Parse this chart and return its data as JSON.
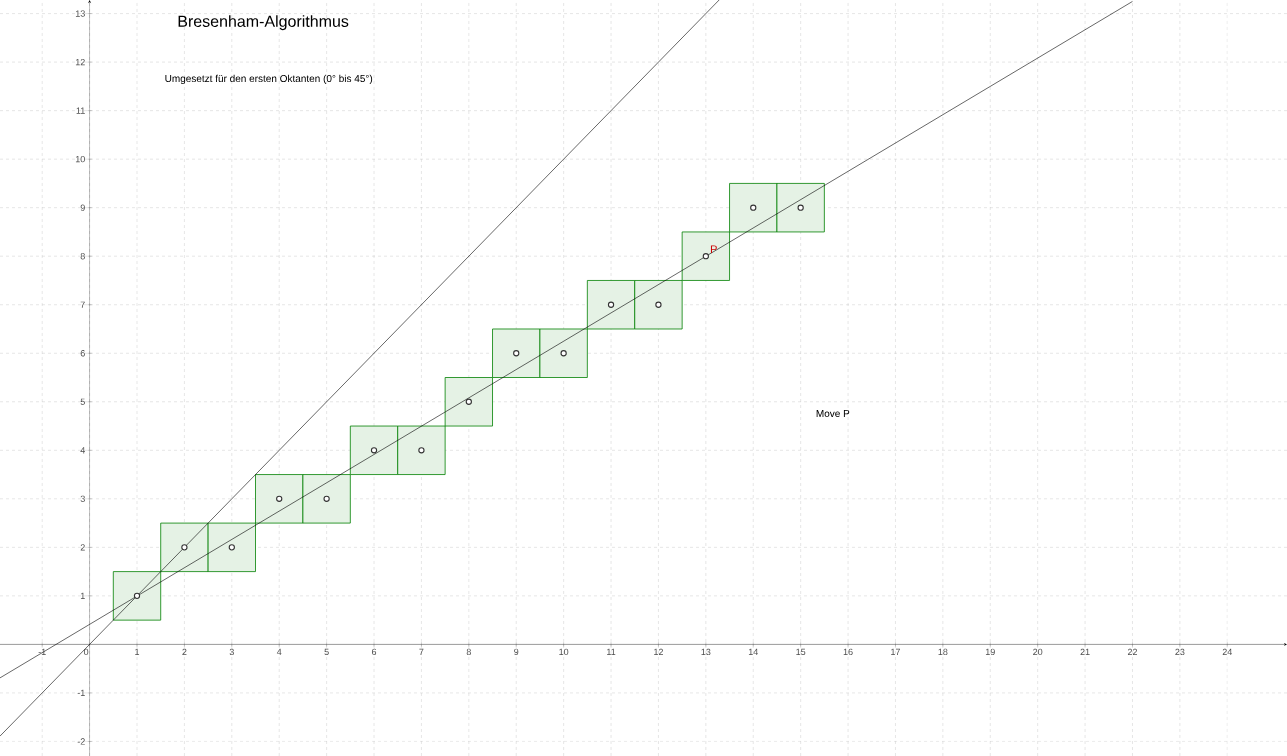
{
  "chart_data": {
    "type": "scatter",
    "title": "Bresenham-Algorithmus",
    "annotations": [
      "Umgesetzt für den ersten Oktanten (0° bis 45°)",
      "Move P",
      {
        "text": "P",
        "x": 13,
        "y": 8
      }
    ],
    "xlim": [
      -1.89,
      25.26
    ],
    "ylim": [
      -2.3,
      13.28
    ],
    "xticks": [
      -1,
      0,
      1,
      2,
      3,
      4,
      5,
      6,
      7,
      8,
      9,
      10,
      11,
      12,
      13,
      14,
      15,
      16,
      17,
      18,
      19,
      20,
      21,
      22,
      23,
      24
    ],
    "yticks": [
      -2,
      -1,
      {
        "value": 0,
        "label": null
      },
      1,
      2,
      3,
      4,
      5,
      6,
      7,
      8,
      9,
      10,
      11,
      12,
      13
    ],
    "grid": true,
    "series": [
      {
        "type": "bar",
        "color": "#008000",
        "x": [
          1,
          2,
          3,
          4,
          5,
          6,
          7,
          8,
          9,
          10,
          11,
          12,
          13,
          14,
          15
        ],
        "base": [
          0.5,
          1.5,
          1.5,
          2.5,
          2.5,
          3.5,
          3.5,
          4.5,
          5.5,
          5.5,
          6.5,
          6.5,
          7.5,
          8.5,
          8.5
        ],
        "values": [
          1,
          1,
          1,
          1,
          1,
          1,
          1,
          1,
          1,
          1,
          1,
          1,
          1,
          1,
          1
        ]
      },
      {
        "type": "line",
        "marker": "none",
        "color": "#000000",
        "x": [
          -1.89,
          22
        ],
        "values": [
          -0.69,
          13.25
        ]
      },
      {
        "type": "line",
        "marker": "none",
        "color": "#000000",
        "x": [
          -1.89,
          13.28
        ],
        "values": [
          -1.89,
          13.28
        ]
      },
      {
        "marker": "circle",
        "color": "#333333",
        "x": [
          1,
          2,
          3,
          4,
          5,
          6,
          7,
          8,
          9,
          10,
          11,
          12,
          13,
          14,
          15
        ],
        "values": [
          1,
          2,
          2,
          3,
          3,
          4,
          4,
          5,
          6,
          6,
          7,
          7,
          8,
          9,
          9
        ]
      }
    ]
  }
}
